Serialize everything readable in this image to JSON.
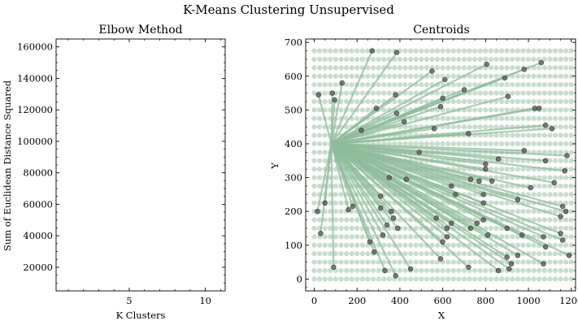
{
  "figure_title": "K-Means Clustering Unsupervised",
  "colors": {
    "grid_points": "#8fbc9b",
    "lines": "#8fbc9b",
    "centroids": "#555555",
    "axes": "#000000"
  },
  "chart_data": [
    {
      "type": "line",
      "title": "Elbow Method",
      "xlabel": "K Clusters",
      "ylabel": "Sum of Euclidean Distance Squared",
      "xlim": [
        0.2,
        11.3
      ],
      "ylim": [
        5000,
        165000
      ],
      "xticks": [
        5,
        10
      ],
      "xtick_labels": [
        "5",
        "10"
      ],
      "yticks": [
        20000,
        40000,
        60000,
        80000,
        100000,
        120000,
        140000,
        160000
      ],
      "ytick_labels": [
        "20000",
        "40000",
        "60000",
        "80000",
        "100000",
        "120000",
        "140000",
        "160000"
      ],
      "series": []
    },
    {
      "type": "scatter",
      "title": "Centroids",
      "xlabel": "X",
      "ylabel": "Y",
      "xlim": [
        -40,
        1220
      ],
      "ylim": [
        -35,
        710
      ],
      "xticks": [
        0,
        200,
        400,
        600,
        800,
        1000,
        1200
      ],
      "xtick_labels": [
        "0",
        "200",
        "400",
        "600",
        "800",
        "1000",
        "1200"
      ],
      "yticks": [
        0,
        100,
        200,
        300,
        400,
        500,
        600,
        700
      ],
      "ytick_labels": [
        "0",
        "100",
        "200",
        "300",
        "400",
        "500",
        "600",
        "700"
      ],
      "grid_points": {
        "x_start": 0,
        "x_end": 1200,
        "x_step": 25,
        "y_start": 0,
        "y_end": 675,
        "y_step": 25
      },
      "hub": [
        80,
        400
      ],
      "centroids": [
        [
          20,
          545
        ],
        [
          85,
          550
        ],
        [
          95,
          530
        ],
        [
          130,
          580
        ],
        [
          270,
          675
        ],
        [
          385,
          670
        ],
        [
          220,
          440
        ],
        [
          290,
          505
        ],
        [
          380,
          545
        ],
        [
          420,
          465
        ],
        [
          385,
          490
        ],
        [
          550,
          615
        ],
        [
          610,
          590
        ],
        [
          590,
          510
        ],
        [
          600,
          535
        ],
        [
          560,
          445
        ],
        [
          700,
          560
        ],
        [
          805,
          635
        ],
        [
          890,
          595
        ],
        [
          980,
          620
        ],
        [
          1060,
          640
        ],
        [
          905,
          540
        ],
        [
          1030,
          505
        ],
        [
          1050,
          505
        ],
        [
          1080,
          455
        ],
        [
          1110,
          445
        ],
        [
          720,
          430
        ],
        [
          490,
          375
        ],
        [
          860,
          355
        ],
        [
          800,
          340
        ],
        [
          800,
          325
        ],
        [
          730,
          295
        ],
        [
          770,
          290
        ],
        [
          830,
          290
        ],
        [
          980,
          380
        ],
        [
          1080,
          350
        ],
        [
          1180,
          365
        ],
        [
          1170,
          320
        ],
        [
          1120,
          285
        ],
        [
          1010,
          270
        ],
        [
          790,
          250
        ],
        [
          790,
          225
        ],
        [
          950,
          235
        ],
        [
          1160,
          215
        ],
        [
          1175,
          200
        ],
        [
          1150,
          185
        ],
        [
          640,
          275
        ],
        [
          660,
          250
        ],
        [
          350,
          300
        ],
        [
          430,
          295
        ],
        [
          310,
          245
        ],
        [
          160,
          205
        ],
        [
          180,
          215
        ],
        [
          360,
          200
        ],
        [
          370,
          180
        ],
        [
          570,
          180
        ],
        [
          640,
          165
        ],
        [
          760,
          165
        ],
        [
          790,
          175
        ],
        [
          730,
          150
        ],
        [
          810,
          130
        ],
        [
          900,
          150
        ],
        [
          970,
          130
        ],
        [
          1070,
          125
        ],
        [
          1150,
          135
        ],
        [
          1160,
          115
        ],
        [
          1080,
          95
        ],
        [
          1190,
          70
        ],
        [
          1070,
          45
        ],
        [
          900,
          65
        ],
        [
          950,
          70
        ],
        [
          920,
          45
        ],
        [
          910,
          30
        ],
        [
          860,
          25
        ],
        [
          720,
          35
        ],
        [
          590,
          60
        ],
        [
          620,
          125
        ],
        [
          600,
          110
        ],
        [
          620,
          150
        ],
        [
          390,
          150
        ],
        [
          320,
          130
        ],
        [
          260,
          110
        ],
        [
          280,
          80
        ],
        [
          330,
          25
        ],
        [
          380,
          10
        ],
        [
          450,
          30
        ],
        [
          340,
          160
        ],
        [
          15,
          200
        ],
        [
          50,
          225
        ],
        [
          30,
          135
        ],
        [
          90,
          35
        ],
        [
          310,
          210
        ]
      ]
    }
  ]
}
